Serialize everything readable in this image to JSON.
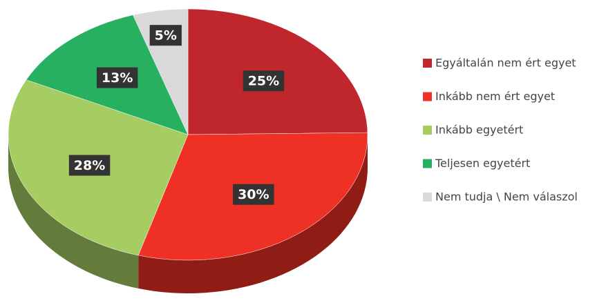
{
  "chart_data": {
    "type": "pie",
    "categories": [
      "Egyáltalán nem ért egyet",
      "Inkább nem ért egyet",
      "Inkább egyetért",
      "Teljesen egyetért",
      "Nem tudja \\ Nem válaszol"
    ],
    "values": [
      25,
      30,
      28,
      13,
      5
    ],
    "value_labels": [
      "25%",
      "30%",
      "28%",
      "13%",
      "5%"
    ],
    "colors": [
      "#c0272d",
      "#ee3124",
      "#a5cd62",
      "#27b060",
      "#d9d9d9"
    ],
    "legend": "right"
  }
}
